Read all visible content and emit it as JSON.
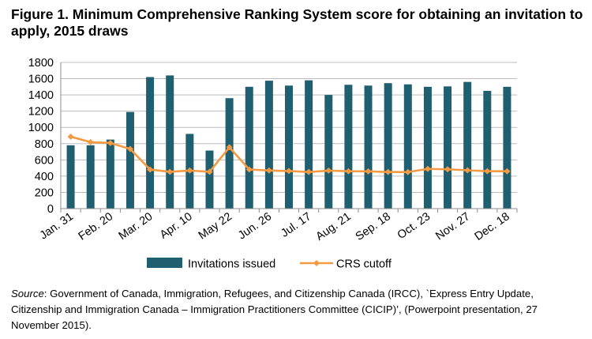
{
  "title": "Figure 1. Minimum Comprehensive Ranking System score for obtaining an invitation to apply, 2015 draws",
  "source": {
    "label": "Source",
    "text": ": Government of Canada, Immigration, Refugees, and Citizenship Canada (IRCC), `Express Entry Update, Citizenship and Immigration Canada – Immigration Practitioners Committee (CICIP)’, (Powerpoint presentation, 27 November 2015)."
  },
  "chart_data": {
    "type": "bar",
    "grid": true,
    "legend_position": "bottom",
    "ylim": [
      0,
      1800
    ],
    "yticks": [
      0,
      200,
      400,
      600,
      800,
      1000,
      1200,
      1400,
      1600,
      1800
    ],
    "tick_labels": [
      "Jan. 31",
      "Feb. 20",
      "Mar. 20",
      "Apr. 10",
      "May 22",
      "Jun. 26",
      "Jul. 17",
      "Aug. 21",
      "Sep. 18",
      "Oct. 23",
      "Nov. 27",
      "Dec. 18"
    ],
    "draw_count": 23,
    "series": [
      {
        "name": "Invitations issued",
        "type": "bar",
        "color": "#1f5f6f",
        "values": [
          780,
          780,
          850,
          1190,
          1620,
          1640,
          920,
          715,
          1360,
          1500,
          1575,
          1515,
          1580,
          1400,
          1525,
          1515,
          1545,
          1530,
          1500,
          1505,
          1560,
          1450,
          1500
        ]
      },
      {
        "name": "CRS cutoff",
        "type": "line",
        "color": "#f39a42",
        "values": [
          886,
          818,
          808,
          735,
          481,
          453,
          469,
          453,
          755,
          482,
          469,
          463,
          451,
          468,
          460,
          459,
          451,
          450,
          489,
          484,
          472,
          461,
          460
        ]
      }
    ]
  }
}
